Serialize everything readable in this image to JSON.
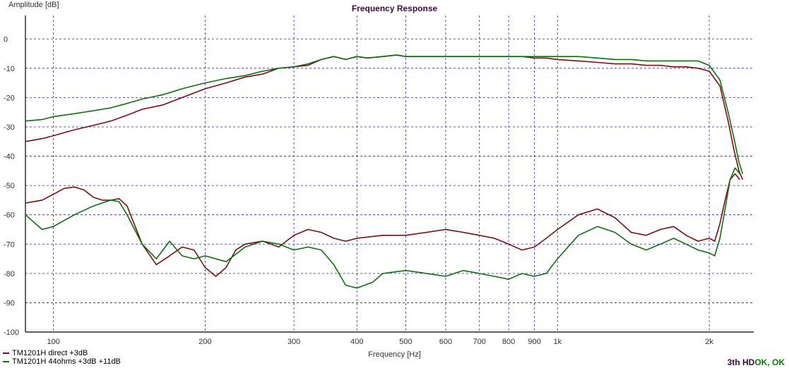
{
  "chart_data": {
    "type": "line",
    "title": "Frequency Response",
    "xlabel": "Frequency [Hz]",
    "ylabel": "Amplitude [dB]",
    "x_scale": "log",
    "xlim": [
      88,
      2450
    ],
    "ylim": [
      -100,
      8
    ],
    "x_ticks": [
      100,
      200,
      300,
      400,
      500,
      600,
      700,
      800,
      900,
      1000,
      2000
    ],
    "x_tick_labels": [
      "100",
      "200",
      "300",
      "400",
      "500",
      "600",
      "700",
      "800",
      "900",
      "1k",
      "2k"
    ],
    "y_ticks": [
      0,
      -10,
      -20,
      -30,
      -40,
      -50,
      -60,
      -70,
      -80,
      -90,
      -100
    ],
    "y_tick_labels": [
      "0",
      "-10",
      "-20",
      "-30",
      "-40",
      "-50",
      "-60",
      "-70",
      "-80",
      "-90",
      "-100"
    ],
    "grid": true,
    "legend_position": "bottom-left",
    "series": [
      {
        "name": "TM1201H direct +3dB",
        "color": "#7a0f0f",
        "role": "response",
        "points": [
          [
            88,
            -35
          ],
          [
            95,
            -34
          ],
          [
            100,
            -33
          ],
          [
            110,
            -31
          ],
          [
            120,
            -29.5
          ],
          [
            130,
            -28
          ],
          [
            140,
            -26
          ],
          [
            150,
            -24
          ],
          [
            165,
            -22.5
          ],
          [
            180,
            -20
          ],
          [
            200,
            -17
          ],
          [
            220,
            -15
          ],
          [
            240,
            -13
          ],
          [
            260,
            -12
          ],
          [
            280,
            -10
          ],
          [
            300,
            -9.5
          ],
          [
            320,
            -9
          ],
          [
            340,
            -7
          ],
          [
            360,
            -6
          ],
          [
            380,
            -7
          ],
          [
            400,
            -6
          ],
          [
            420,
            -6.5
          ],
          [
            450,
            -6
          ],
          [
            480,
            -5.5
          ],
          [
            500,
            -6
          ],
          [
            550,
            -6
          ],
          [
            600,
            -6
          ],
          [
            650,
            -6
          ],
          [
            700,
            -6
          ],
          [
            750,
            -6
          ],
          [
            800,
            -6
          ],
          [
            850,
            -6
          ],
          [
            900,
            -6.5
          ],
          [
            950,
            -6.5
          ],
          [
            1000,
            -7
          ],
          [
            1100,
            -7.5
          ],
          [
            1200,
            -8
          ],
          [
            1300,
            -8.5
          ],
          [
            1400,
            -8.5
          ],
          [
            1500,
            -9
          ],
          [
            1600,
            -9
          ],
          [
            1700,
            -9.5
          ],
          [
            1800,
            -9.5
          ],
          [
            1900,
            -10
          ],
          [
            2000,
            -11
          ],
          [
            2100,
            -16
          ],
          [
            2180,
            -28
          ],
          [
            2240,
            -38
          ],
          [
            2290,
            -45
          ],
          [
            2330,
            -48
          ]
        ]
      },
      {
        "name": "TM1201H 44ohms +3dB +11dB",
        "color": "#0f6e0f",
        "role": "response",
        "points": [
          [
            88,
            -28
          ],
          [
            95,
            -27.5
          ],
          [
            100,
            -26.5
          ],
          [
            110,
            -25.5
          ],
          [
            120,
            -24.5
          ],
          [
            130,
            -23.5
          ],
          [
            140,
            -22
          ],
          [
            150,
            -20.5
          ],
          [
            165,
            -19
          ],
          [
            180,
            -17
          ],
          [
            200,
            -15
          ],
          [
            220,
            -13.5
          ],
          [
            240,
            -12.5
          ],
          [
            260,
            -11
          ],
          [
            280,
            -10
          ],
          [
            300,
            -9.5
          ],
          [
            320,
            -8.5
          ],
          [
            340,
            -7
          ],
          [
            360,
            -6
          ],
          [
            380,
            -7
          ],
          [
            400,
            -6
          ],
          [
            420,
            -6.5
          ],
          [
            450,
            -6
          ],
          [
            480,
            -5.5
          ],
          [
            500,
            -6
          ],
          [
            550,
            -6
          ],
          [
            600,
            -6
          ],
          [
            650,
            -6
          ],
          [
            700,
            -6
          ],
          [
            750,
            -6
          ],
          [
            800,
            -6
          ],
          [
            850,
            -6
          ],
          [
            900,
            -6
          ],
          [
            950,
            -6
          ],
          [
            1000,
            -6
          ],
          [
            1100,
            -6
          ],
          [
            1200,
            -6.5
          ],
          [
            1300,
            -7
          ],
          [
            1400,
            -7
          ],
          [
            1500,
            -7.5
          ],
          [
            1600,
            -7.5
          ],
          [
            1700,
            -7.5
          ],
          [
            1800,
            -7.5
          ],
          [
            1900,
            -7.5
          ],
          [
            2000,
            -9
          ],
          [
            2100,
            -14
          ],
          [
            2180,
            -25
          ],
          [
            2240,
            -34
          ],
          [
            2290,
            -42
          ],
          [
            2330,
            -46
          ]
        ]
      },
      {
        "name": "TM1201H direct +3dB",
        "color": "#7a0f0f",
        "role": "distortion",
        "points": [
          [
            88,
            -56
          ],
          [
            95,
            -55
          ],
          [
            100,
            -53
          ],
          [
            105,
            -51
          ],
          [
            110,
            -50.5
          ],
          [
            115,
            -51.5
          ],
          [
            120,
            -54
          ],
          [
            125,
            -55
          ],
          [
            130,
            -55
          ],
          [
            135,
            -54.5
          ],
          [
            140,
            -57
          ],
          [
            150,
            -70
          ],
          [
            160,
            -77
          ],
          [
            170,
            -74
          ],
          [
            180,
            -71
          ],
          [
            190,
            -72
          ],
          [
            200,
            -78
          ],
          [
            210,
            -81
          ],
          [
            220,
            -78
          ],
          [
            230,
            -72
          ],
          [
            240,
            -70
          ],
          [
            260,
            -69
          ],
          [
            280,
            -71
          ],
          [
            300,
            -67
          ],
          [
            320,
            -65
          ],
          [
            340,
            -66
          ],
          [
            360,
            -68
          ],
          [
            380,
            -69
          ],
          [
            400,
            -68
          ],
          [
            450,
            -67
          ],
          [
            500,
            -67
          ],
          [
            550,
            -66
          ],
          [
            600,
            -65
          ],
          [
            650,
            -66
          ],
          [
            700,
            -67
          ],
          [
            750,
            -68
          ],
          [
            800,
            -70
          ],
          [
            850,
            -72
          ],
          [
            900,
            -71
          ],
          [
            950,
            -68
          ],
          [
            1000,
            -65
          ],
          [
            1100,
            -60
          ],
          [
            1200,
            -58
          ],
          [
            1300,
            -61
          ],
          [
            1400,
            -66
          ],
          [
            1500,
            -67
          ],
          [
            1600,
            -65
          ],
          [
            1700,
            -64
          ],
          [
            1800,
            -67
          ],
          [
            1900,
            -69
          ],
          [
            2000,
            -68
          ],
          [
            2050,
            -69
          ],
          [
            2100,
            -63
          ],
          [
            2150,
            -55
          ],
          [
            2200,
            -48
          ],
          [
            2250,
            -46
          ],
          [
            2300,
            -48
          ]
        ]
      },
      {
        "name": "TM1201H 44ohms +3dB +11dB",
        "color": "#0f6e0f",
        "role": "distortion",
        "points": [
          [
            88,
            -60
          ],
          [
            95,
            -65
          ],
          [
            100,
            -64
          ],
          [
            110,
            -60
          ],
          [
            120,
            -57
          ],
          [
            130,
            -55
          ],
          [
            135,
            -55.5
          ],
          [
            140,
            -60
          ],
          [
            150,
            -70
          ],
          [
            160,
            -75
          ],
          [
            170,
            -69
          ],
          [
            180,
            -74
          ],
          [
            190,
            -75
          ],
          [
            200,
            -74
          ],
          [
            220,
            -76
          ],
          [
            240,
            -71
          ],
          [
            260,
            -69
          ],
          [
            280,
            -70
          ],
          [
            300,
            -72
          ],
          [
            320,
            -71
          ],
          [
            340,
            -72
          ],
          [
            360,
            -77
          ],
          [
            380,
            -84
          ],
          [
            400,
            -85
          ],
          [
            430,
            -83
          ],
          [
            450,
            -80
          ],
          [
            500,
            -79
          ],
          [
            550,
            -80
          ],
          [
            600,
            -81
          ],
          [
            650,
            -79
          ],
          [
            700,
            -80
          ],
          [
            750,
            -81
          ],
          [
            800,
            -82
          ],
          [
            850,
            -80
          ],
          [
            900,
            -81
          ],
          [
            950,
            -80
          ],
          [
            1000,
            -75
          ],
          [
            1100,
            -67
          ],
          [
            1200,
            -64
          ],
          [
            1300,
            -66
          ],
          [
            1400,
            -70
          ],
          [
            1500,
            -72
          ],
          [
            1600,
            -70
          ],
          [
            1700,
            -68
          ],
          [
            1800,
            -70
          ],
          [
            1900,
            -72
          ],
          [
            2000,
            -73
          ],
          [
            2050,
            -74
          ],
          [
            2100,
            -68
          ],
          [
            2150,
            -58
          ],
          [
            2200,
            -48
          ],
          [
            2250,
            -44
          ],
          [
            2300,
            -46
          ]
        ]
      }
    ]
  },
  "legend": {
    "items": [
      {
        "label": "TM1201H direct +3dB",
        "color": "#7a0f0f"
      },
      {
        "label": "TM1201H 44ohms +3dB +11dB",
        "color": "#0f6e0f"
      }
    ]
  },
  "status": {
    "thd": "3th HD",
    "ok": "OK, OK"
  }
}
